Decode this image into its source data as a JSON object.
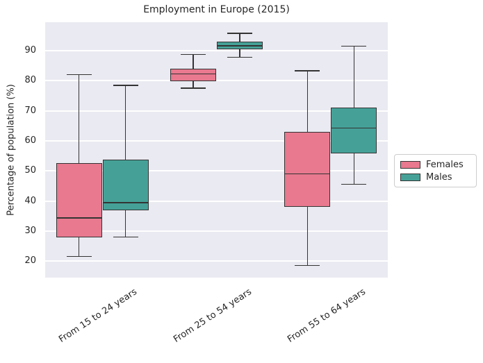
{
  "chart_data": {
    "type": "boxplot",
    "title": "Employment in Europe (2015)",
    "xlabel": "",
    "ylabel": "Percentage of population (%)",
    "categories": [
      "From 15 to 24 years",
      "From 25 to 54 years",
      "From 55 to 64 years"
    ],
    "yticks": [
      20,
      30,
      40,
      50,
      60,
      70,
      80,
      90
    ],
    "ylim": [
      14.5,
      99.5
    ],
    "grid": true,
    "legend": {
      "position": "right",
      "entries": [
        "Females",
        "Males"
      ]
    },
    "series": [
      {
        "name": "Females",
        "color": "#e8798f",
        "boxes": [
          {
            "category": "From 15 to 24 years",
            "min": 21.5,
            "q1": 27.8,
            "median": 34.3,
            "q3": 52.5,
            "max": 82.0
          },
          {
            "category": "From 25 to 54 years",
            "min": 77.6,
            "q1": 79.8,
            "median": 82.3,
            "q3": 84.0,
            "max": 88.7
          },
          {
            "category": "From 55 to 64 years",
            "min": 18.6,
            "q1": 38.0,
            "median": 49.0,
            "q3": 63.0,
            "max": 83.3
          }
        ]
      },
      {
        "name": "Males",
        "color": "#45a198",
        "boxes": [
          {
            "category": "From 15 to 24 years",
            "min": 28.0,
            "q1": 37.0,
            "median": 39.5,
            "q3": 53.8,
            "max": 78.5
          },
          {
            "category": "From 25 to 54 years",
            "min": 87.9,
            "q1": 90.5,
            "median": 91.7,
            "q3": 93.1,
            "max": 95.8
          },
          {
            "category": "From 55 to 64 years",
            "min": 45.5,
            "q1": 55.8,
            "median": 64.3,
            "q3": 71.2,
            "max": 91.5
          }
        ]
      }
    ],
    "style": {
      "axes_background": "#eaeaf2",
      "grid_color": "#ffffff",
      "edge_color": "#333333",
      "text_color": "#262626"
    }
  }
}
